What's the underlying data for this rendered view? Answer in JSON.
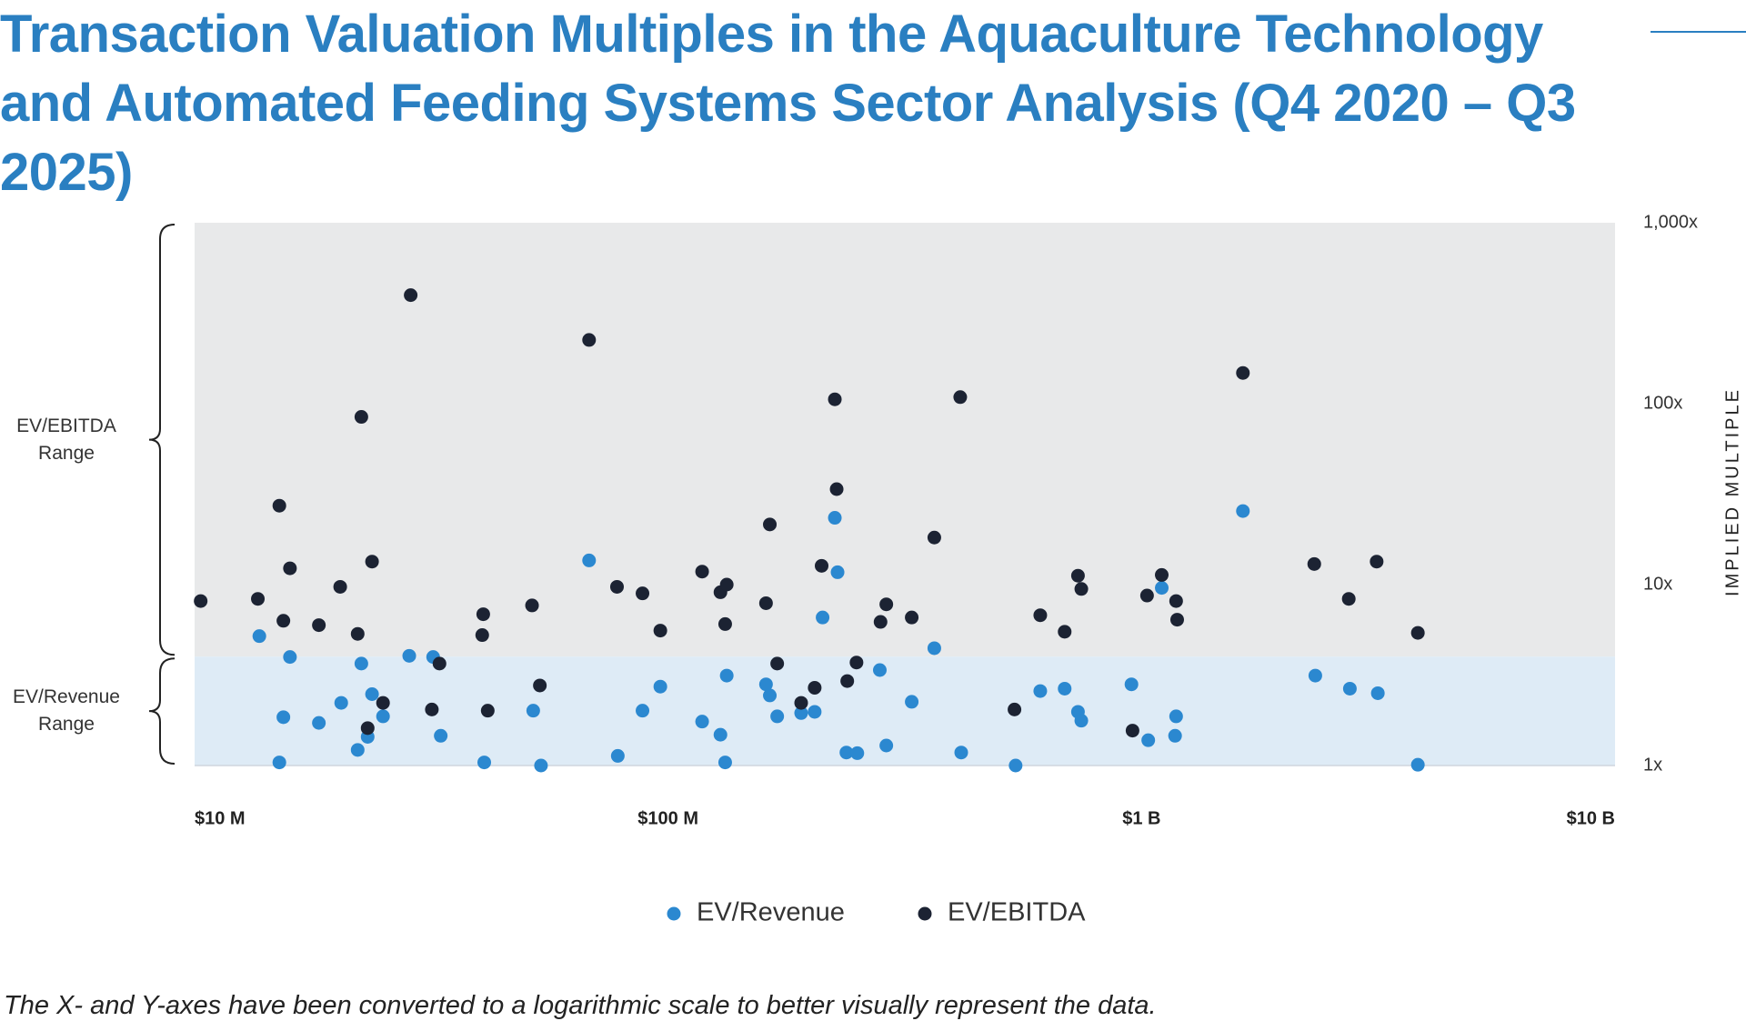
{
  "chart_data": {
    "type": "scatter",
    "title": "Transaction Valuation Multiples in the Aquaculture Technology and Automated Feeding Systems Sector Analysis (Q4 2020 – Q3 2025)",
    "y_label": "IMPLIED MULTIPLE",
    "note": "The X- and Y-axes have been converted to a logarithmic scale to better visually represent the data.",
    "x_scale": "log",
    "y_scale": "log",
    "xlim": [
      10,
      10000
    ],
    "ylim": [
      1,
      1000
    ],
    "xticks": [
      {
        "value": 10,
        "label": "$10 M"
      },
      {
        "value": 100,
        "label": "$100 M"
      },
      {
        "value": 1000,
        "label": "$1 B"
      },
      {
        "value": 10000,
        "label": "$10 B"
      }
    ],
    "yticks": [
      {
        "value": 1000,
        "label": "1,000x"
      },
      {
        "value": 100,
        "label": "100x"
      },
      {
        "value": 10,
        "label": "10x"
      },
      {
        "value": 1,
        "label": "1x"
      }
    ],
    "legend": "bottom",
    "ranges": [
      {
        "label": "EV/EBITDA Range",
        "from": 4,
        "to": 1000,
        "color": "#e8e9ea"
      },
      {
        "label": "EV/Revenue Range",
        "from": 1,
        "to": 4,
        "color": "#deebf6"
      }
    ],
    "series": [
      {
        "name": "EV/Revenue",
        "color": "#2b88d0",
        "x": [
          13.7,
          15.1,
          15.4,
          15.9,
          18.3,
          20.4,
          22.1,
          22.5,
          23.2,
          23.7,
          25.0,
          28.4,
          31.9,
          33.1,
          40.9,
          51.9,
          53.9,
          68.1,
          78.3,
          88.3,
          96.3,
          118,
          129,
          132,
          133,
          161,
          164,
          170,
          191,
          204,
          212,
          225,
          228,
          238,
          251,
          280,
          289,
          327,
          365,
          416,
          542,
          611,
          688,
          734,
          746,
          952,
          1033,
          1103,
          1183,
          1177,
          1637,
          2328,
          2754,
          3155,
          3833
        ],
        "values": [
          5.19,
          1.04,
          1.85,
          3.98,
          1.72,
          2.22,
          1.22,
          3.66,
          1.44,
          2.48,
          1.87,
          4.04,
          3.98,
          1.46,
          1.04,
          2.01,
          1.0,
          13.6,
          1.13,
          2.01,
          2.73,
          1.75,
          1.48,
          1.04,
          3.14,
          2.81,
          2.44,
          1.87,
          1.95,
          1.98,
          6.58,
          23.4,
          11.7,
          1.18,
          1.17,
          3.37,
          1.29,
          2.25,
          4.45,
          1.18,
          1.0,
          2.58,
          2.66,
          1.98,
          1.77,
          2.81,
          1.38,
          9.59,
          1.87,
          1.46,
          25.5,
          3.14,
          2.66,
          2.51,
          1.01
        ]
      },
      {
        "name": "EV/EBITDA",
        "color": "#1c2333",
        "x": [
          10.3,
          13.6,
          15.1,
          15.4,
          15.9,
          18.3,
          20.3,
          22.1,
          22.5,
          23.7,
          28.6,
          25.0,
          23.2,
          31.7,
          32.9,
          40.7,
          40.5,
          41.6,
          51.6,
          53.6,
          68.1,
          78.0,
          88.3,
          96.3,
          118,
          129,
          133,
          132,
          161,
          164,
          170,
          191,
          204,
          211,
          225,
          227,
          239,
          250,
          281,
          289,
          327,
          365,
          414,
          539,
          611,
          688,
          734,
          746,
          957,
          1027,
          1103,
          1183,
          1189,
          1637,
          2316,
          2739,
          3137,
          3833
        ],
        "values": [
          8.11,
          8.34,
          27.3,
          6.31,
          12.3,
          5.97,
          9.72,
          5.34,
          84.5,
          13.4,
          398,
          2.22,
          1.61,
          2.04,
          3.66,
          6.86,
          5.26,
          2.01,
          7.67,
          2.77,
          225,
          9.72,
          8.94,
          5.57,
          11.8,
          9.07,
          10.0,
          6.05,
          7.89,
          21.5,
          3.66,
          2.22,
          2.69,
          12.7,
          105.7,
          33.7,
          2.93,
          3.71,
          6.22,
          7.78,
          6.58,
          18.2,
          108.7,
          2.04,
          6.77,
          5.49,
          11.2,
          9.46,
          1.56,
          8.7,
          11.3,
          8.11,
          6.4,
          147.8,
          13.0,
          8.34,
          13.4,
          5.41
        ]
      }
    ]
  }
}
